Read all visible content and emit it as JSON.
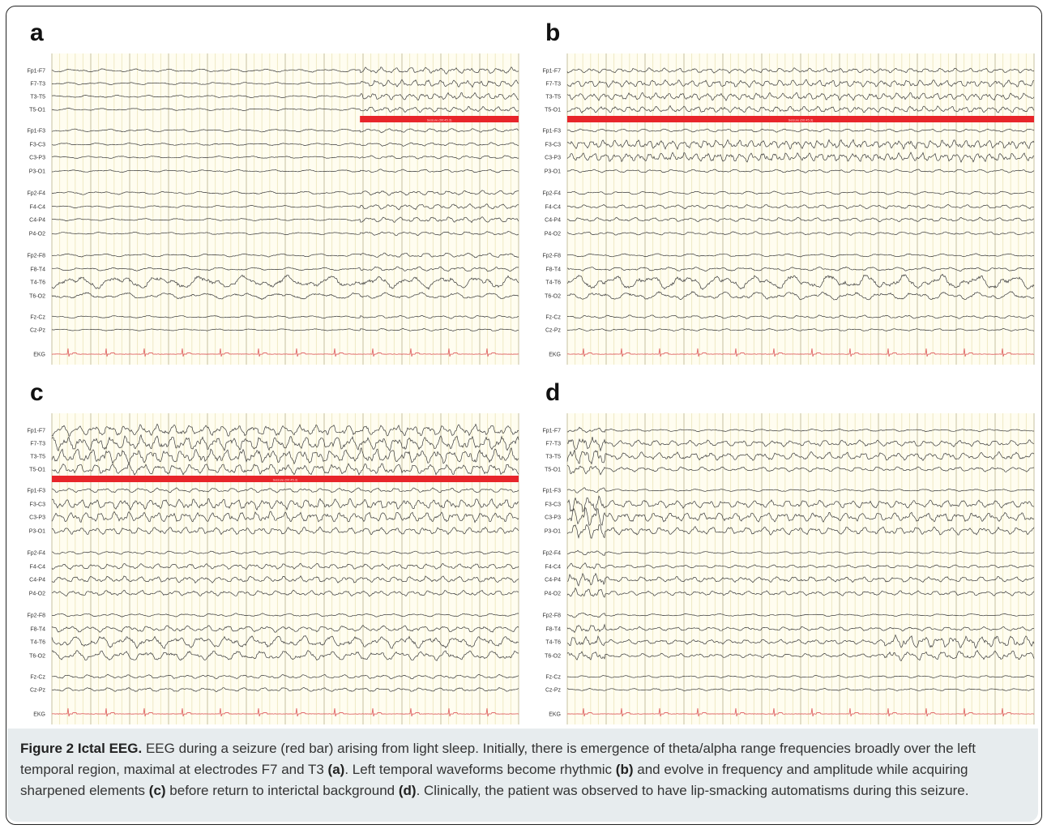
{
  "panels": [
    {
      "label": "a",
      "seizure_start": 0.66,
      "seizure_end": 1.0,
      "seizure_label": "Seizure (00:45.3)",
      "channels": [
        {
          "name": "Fp1-F7",
          "amp": 2.0,
          "freq": 1.6,
          "onset_amp": 4.0,
          "onset_freq": 3.5
        },
        {
          "name": "F7-T3",
          "amp": 1.5,
          "freq": 1.7,
          "onset_amp": 4.5,
          "onset_freq": 4.0
        },
        {
          "name": "T3-T5",
          "amp": 1.5,
          "freq": 1.7,
          "onset_amp": 4.5,
          "onset_freq": 4.0
        },
        {
          "name": "T5-O1",
          "amp": 1.5,
          "freq": 1.6,
          "onset_amp": 3.5,
          "onset_freq": 3.6
        },
        {
          "name": "Fp1-F3",
          "amp": 1.8,
          "freq": 1.5,
          "onset_amp": 2.5,
          "onset_freq": 2.5
        },
        {
          "name": "F3-C3",
          "amp": 1.5,
          "freq": 1.6,
          "onset_amp": 2.2,
          "onset_freq": 2.6
        },
        {
          "name": "C3-P3",
          "amp": 1.5,
          "freq": 1.6,
          "onset_amp": 2.2,
          "onset_freq": 2.6
        },
        {
          "name": "P3-O1",
          "amp": 1.5,
          "freq": 1.5,
          "onset_amp": 2.0,
          "onset_freq": 2.4
        },
        {
          "name": "Fp2-F4",
          "amp": 2.0,
          "freq": 1.5,
          "onset_amp": 3.0,
          "onset_freq": 3.0
        },
        {
          "name": "F4-C4",
          "amp": 1.5,
          "freq": 1.6,
          "onset_amp": 3.5,
          "onset_freq": 3.2
        },
        {
          "name": "C4-P4",
          "amp": 1.5,
          "freq": 1.6,
          "onset_amp": 3.5,
          "onset_freq": 3.2
        },
        {
          "name": "P4-O2",
          "amp": 1.5,
          "freq": 1.5,
          "onset_amp": 2.5,
          "onset_freq": 2.5
        },
        {
          "name": "Fp2-F8",
          "amp": 2.0,
          "freq": 1.4,
          "onset_amp": 3.0,
          "onset_freq": 2.5
        },
        {
          "name": "F8-T4",
          "amp": 2.0,
          "freq": 1.5,
          "onset_amp": 3.0,
          "onset_freq": 2.5
        },
        {
          "name": "T4-T6",
          "amp": 8.0,
          "freq": 1.2,
          "onset_amp": 8.0,
          "onset_freq": 1.5
        },
        {
          "name": "T6-O2",
          "amp": 4.0,
          "freq": 1.3,
          "onset_amp": 4.0,
          "onset_freq": 1.5
        },
        {
          "name": "Fz-Cz",
          "amp": 1.5,
          "freq": 1.6,
          "onset_amp": 2.0,
          "onset_freq": 2.5
        },
        {
          "name": "Cz-Pz",
          "amp": 1.2,
          "freq": 1.6,
          "onset_amp": 1.6,
          "onset_freq": 2.5
        },
        {
          "name": "EKG",
          "amp": 0,
          "freq": 0,
          "onset_amp": 0,
          "onset_freq": 0
        }
      ]
    },
    {
      "label": "b",
      "seizure_start": 0.0,
      "seizure_end": 1.0,
      "seizure_label": "Seizure (00:45.3)",
      "channels": [
        {
          "name": "Fp1-F7",
          "amp": 3.0,
          "freq": 3.5,
          "onset_amp": 3.0,
          "onset_freq": 3.5
        },
        {
          "name": "F7-T3",
          "amp": 4.5,
          "freq": 4.0,
          "onset_amp": 4.5,
          "onset_freq": 4.0
        },
        {
          "name": "T3-T5",
          "amp": 4.5,
          "freq": 4.0,
          "onset_amp": 4.5,
          "onset_freq": 4.0
        },
        {
          "name": "T5-O1",
          "amp": 4.0,
          "freq": 3.8,
          "onset_amp": 4.0,
          "onset_freq": 3.8
        },
        {
          "name": "Fp1-F3",
          "amp": 2.0,
          "freq": 2.5,
          "onset_amp": 2.0,
          "onset_freq": 2.5
        },
        {
          "name": "F3-C3",
          "amp": 5.5,
          "freq": 4.5,
          "onset_amp": 5.5,
          "onset_freq": 4.5
        },
        {
          "name": "C3-P3",
          "amp": 5.5,
          "freq": 4.5,
          "onset_amp": 5.5,
          "onset_freq": 4.5
        },
        {
          "name": "P3-O1",
          "amp": 2.0,
          "freq": 2.5,
          "onset_amp": 2.0,
          "onset_freq": 2.5
        },
        {
          "name": "Fp2-F4",
          "amp": 2.0,
          "freq": 2.0,
          "onset_amp": 2.0,
          "onset_freq": 2.0
        },
        {
          "name": "F4-C4",
          "amp": 2.5,
          "freq": 2.8,
          "onset_amp": 2.5,
          "onset_freq": 2.8
        },
        {
          "name": "C4-P4",
          "amp": 2.5,
          "freq": 2.8,
          "onset_amp": 2.5,
          "onset_freq": 2.8
        },
        {
          "name": "P4-O2",
          "amp": 2.0,
          "freq": 2.4,
          "onset_amp": 2.0,
          "onset_freq": 2.4
        },
        {
          "name": "Fp2-F8",
          "amp": 2.0,
          "freq": 1.6,
          "onset_amp": 2.0,
          "onset_freq": 1.6
        },
        {
          "name": "F8-T4",
          "amp": 2.5,
          "freq": 2.0,
          "onset_amp": 2.5,
          "onset_freq": 2.0
        },
        {
          "name": "T4-T6",
          "amp": 9.0,
          "freq": 1.4,
          "onset_amp": 9.0,
          "onset_freq": 1.4
        },
        {
          "name": "T6-O2",
          "amp": 5.0,
          "freq": 1.6,
          "onset_amp": 5.0,
          "onset_freq": 1.6
        },
        {
          "name": "Fz-Cz",
          "amp": 2.0,
          "freq": 2.4,
          "onset_amp": 2.0,
          "onset_freq": 2.4
        },
        {
          "name": "Cz-Pz",
          "amp": 1.5,
          "freq": 2.4,
          "onset_amp": 1.5,
          "onset_freq": 2.4
        },
        {
          "name": "EKG",
          "amp": 0,
          "freq": 0,
          "onset_amp": 0,
          "onset_freq": 0
        }
      ]
    },
    {
      "label": "c",
      "seizure_start": 0.0,
      "seizure_end": 1.0,
      "seizure_label": "Seizure (00:45.3)",
      "channels": [
        {
          "name": "Fp1-F7",
          "amp": 7.0,
          "freq": 3.2,
          "onset_amp": 7.0,
          "onset_freq": 3.2
        },
        {
          "name": "F7-T3",
          "amp": 9.0,
          "freq": 3.4,
          "onset_amp": 9.0,
          "onset_freq": 3.4
        },
        {
          "name": "T3-T5",
          "amp": 9.0,
          "freq": 3.4,
          "onset_amp": 9.0,
          "onset_freq": 3.4
        },
        {
          "name": "T5-O1",
          "amp": 7.0,
          "freq": 3.2,
          "onset_amp": 7.0,
          "onset_freq": 3.2
        },
        {
          "name": "Fp1-F3",
          "amp": 3.0,
          "freq": 2.8,
          "onset_amp": 3.0,
          "onset_freq": 2.8
        },
        {
          "name": "F3-C3",
          "amp": 6.5,
          "freq": 3.6,
          "onset_amp": 6.5,
          "onset_freq": 3.6
        },
        {
          "name": "C3-P3",
          "amp": 6.5,
          "freq": 3.6,
          "onset_amp": 6.5,
          "onset_freq": 3.6
        },
        {
          "name": "P3-O1",
          "amp": 4.5,
          "freq": 3.4,
          "onset_amp": 4.5,
          "onset_freq": 3.4
        },
        {
          "name": "Fp2-F4",
          "amp": 2.0,
          "freq": 2.5,
          "onset_amp": 2.0,
          "onset_freq": 2.5
        },
        {
          "name": "F4-C4",
          "amp": 3.5,
          "freq": 3.2,
          "onset_amp": 3.5,
          "onset_freq": 3.2
        },
        {
          "name": "C4-P4",
          "amp": 4.0,
          "freq": 3.2,
          "onset_amp": 4.0,
          "onset_freq": 3.2
        },
        {
          "name": "P4-O2",
          "amp": 3.5,
          "freq": 3.0,
          "onset_amp": 3.5,
          "onset_freq": 3.0
        },
        {
          "name": "Fp2-F8",
          "amp": 2.0,
          "freq": 2.0,
          "onset_amp": 2.0,
          "onset_freq": 2.0
        },
        {
          "name": "F8-T4",
          "amp": 4.0,
          "freq": 2.6,
          "onset_amp": 4.0,
          "onset_freq": 2.6
        },
        {
          "name": "T4-T6",
          "amp": 7.5,
          "freq": 2.0,
          "onset_amp": 7.5,
          "onset_freq": 2.0
        },
        {
          "name": "T6-O2",
          "amp": 6.0,
          "freq": 2.2,
          "onset_amp": 6.0,
          "onset_freq": 2.2
        },
        {
          "name": "Fz-Cz",
          "amp": 2.5,
          "freq": 2.6,
          "onset_amp": 2.5,
          "onset_freq": 2.6
        },
        {
          "name": "Cz-Pz",
          "amp": 2.5,
          "freq": 2.6,
          "onset_amp": 2.5,
          "onset_freq": 2.6
        },
        {
          "name": "EKG",
          "amp": 0,
          "freq": 0,
          "onset_amp": 0,
          "onset_freq": 0
        }
      ]
    },
    {
      "label": "d",
      "seizure_start": -1,
      "seizure_end": -1,
      "seizure_label": "",
      "channels": [
        {
          "name": "Fp1-F7",
          "amp": 1.5,
          "freq": 2.0,
          "onset_amp": 1.5,
          "onset_freq": 2.0
        },
        {
          "name": "F7-T3",
          "amp": 4.0,
          "freq": 3.0,
          "onset_amp": 4.0,
          "onset_freq": 3.0
        },
        {
          "name": "T3-T5",
          "amp": 5.0,
          "freq": 3.0,
          "onset_amp": 5.0,
          "onset_freq": 3.0
        },
        {
          "name": "T5-O1",
          "amp": 3.0,
          "freq": 2.6,
          "onset_amp": 3.0,
          "onset_freq": 2.6
        },
        {
          "name": "Fp1-F3",
          "amp": 1.5,
          "freq": 2.0,
          "onset_amp": 1.5,
          "onset_freq": 2.0
        },
        {
          "name": "F3-C3",
          "amp": 5.0,
          "freq": 3.2,
          "onset_amp": 5.0,
          "onset_freq": 3.2
        },
        {
          "name": "C3-P3",
          "amp": 6.0,
          "freq": 3.2,
          "onset_amp": 6.0,
          "onset_freq": 3.2
        },
        {
          "name": "P3-O1",
          "amp": 5.0,
          "freq": 3.0,
          "onset_amp": 5.0,
          "onset_freq": 3.0
        },
        {
          "name": "Fp2-F4",
          "amp": 1.5,
          "freq": 2.0,
          "onset_amp": 1.5,
          "onset_freq": 2.0
        },
        {
          "name": "F4-C4",
          "amp": 2.0,
          "freq": 2.8,
          "onset_amp": 2.0,
          "onset_freq": 2.8
        },
        {
          "name": "C4-P4",
          "amp": 3.5,
          "freq": 3.0,
          "onset_amp": 3.5,
          "onset_freq": 3.0
        },
        {
          "name": "P4-O2",
          "amp": 3.0,
          "freq": 3.0,
          "onset_amp": 3.0,
          "onset_freq": 3.0
        },
        {
          "name": "Fp2-F8",
          "amp": 1.5,
          "freq": 1.6,
          "onset_amp": 1.5,
          "onset_freq": 1.6
        },
        {
          "name": "F8-T4",
          "amp": 2.5,
          "freq": 2.8,
          "onset_amp": 2.5,
          "onset_freq": 2.8
        },
        {
          "name": "T4-T6",
          "amp": 3.0,
          "freq": 3.0,
          "onset_amp": 8.0,
          "onset_freq": 3.5
        },
        {
          "name": "T6-O2",
          "amp": 2.5,
          "freq": 2.8,
          "onset_amp": 6.0,
          "onset_freq": 3.0
        },
        {
          "name": "Fz-Cz",
          "amp": 1.5,
          "freq": 2.4,
          "onset_amp": 1.5,
          "onset_freq": 2.4
        },
        {
          "name": "Cz-Pz",
          "amp": 1.5,
          "freq": 2.4,
          "onset_amp": 1.5,
          "onset_freq": 2.4
        },
        {
          "name": "EKG",
          "amp": 0,
          "freq": 0,
          "onset_amp": 0,
          "onset_freq": 0
        }
      ]
    }
  ],
  "colors": {
    "paper": "#fffdf0",
    "grid_minor": "#efe9c4",
    "grid_major": "#c7c1a0",
    "trace": "#3a3a3a",
    "ekg": "#e06868",
    "seizure_bar": "#e8252a"
  },
  "caption": {
    "fig_label": "Figure 2 Ictal EEG.",
    "seg1": " EEG during a seizure (red bar) arising from light sleep. Initially, there is emergence of theta/alpha range frequencies broadly over the left temporal region, maximal at electrodes F7 and T3 ",
    "ref_a": "(a)",
    "seg2": ". Left temporal waveforms become rhythmic ",
    "ref_b": "(b)",
    "seg3": " and evolve in frequency and amplitude while acquiring sharpened elements ",
    "ref_c": "(c)",
    "seg4": " before return to interictal background ",
    "ref_d": "(d)",
    "seg5": ". Clinically, the patient was observed to have lip-smacking automatisms during this seizure."
  }
}
